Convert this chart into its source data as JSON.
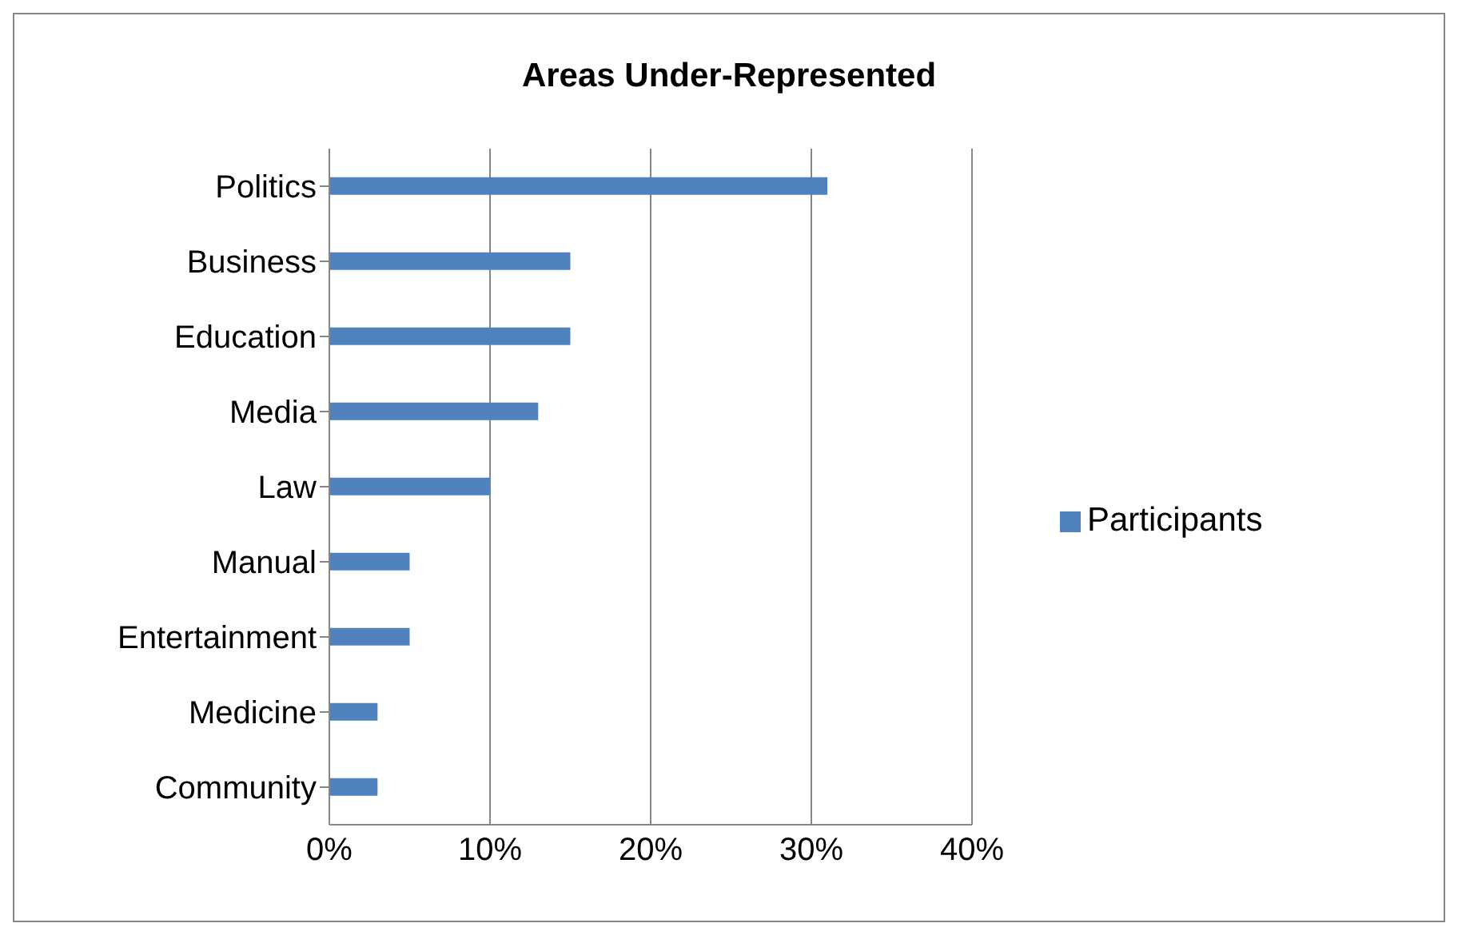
{
  "chart_data": {
    "type": "bar",
    "orientation": "horizontal",
    "title": "Areas Under-Represented",
    "categories": [
      "Politics",
      "Business",
      "Education",
      "Media",
      "Law",
      "Manual",
      "Entertainment",
      "Medicine",
      "Community"
    ],
    "series": [
      {
        "name": "Participants",
        "color": "#4f81bd",
        "values": [
          31,
          15,
          15,
          13,
          10,
          5,
          5,
          3,
          3
        ]
      }
    ],
    "xlim": [
      0,
      40
    ],
    "xticks": [
      {
        "value": 0,
        "label": "0%"
      },
      {
        "value": 10,
        "label": "10%"
      },
      {
        "value": 20,
        "label": "20%"
      },
      {
        "value": 30,
        "label": "30%"
      },
      {
        "value": 40,
        "label": "40%"
      }
    ],
    "grid": "x",
    "legend": "right"
  }
}
